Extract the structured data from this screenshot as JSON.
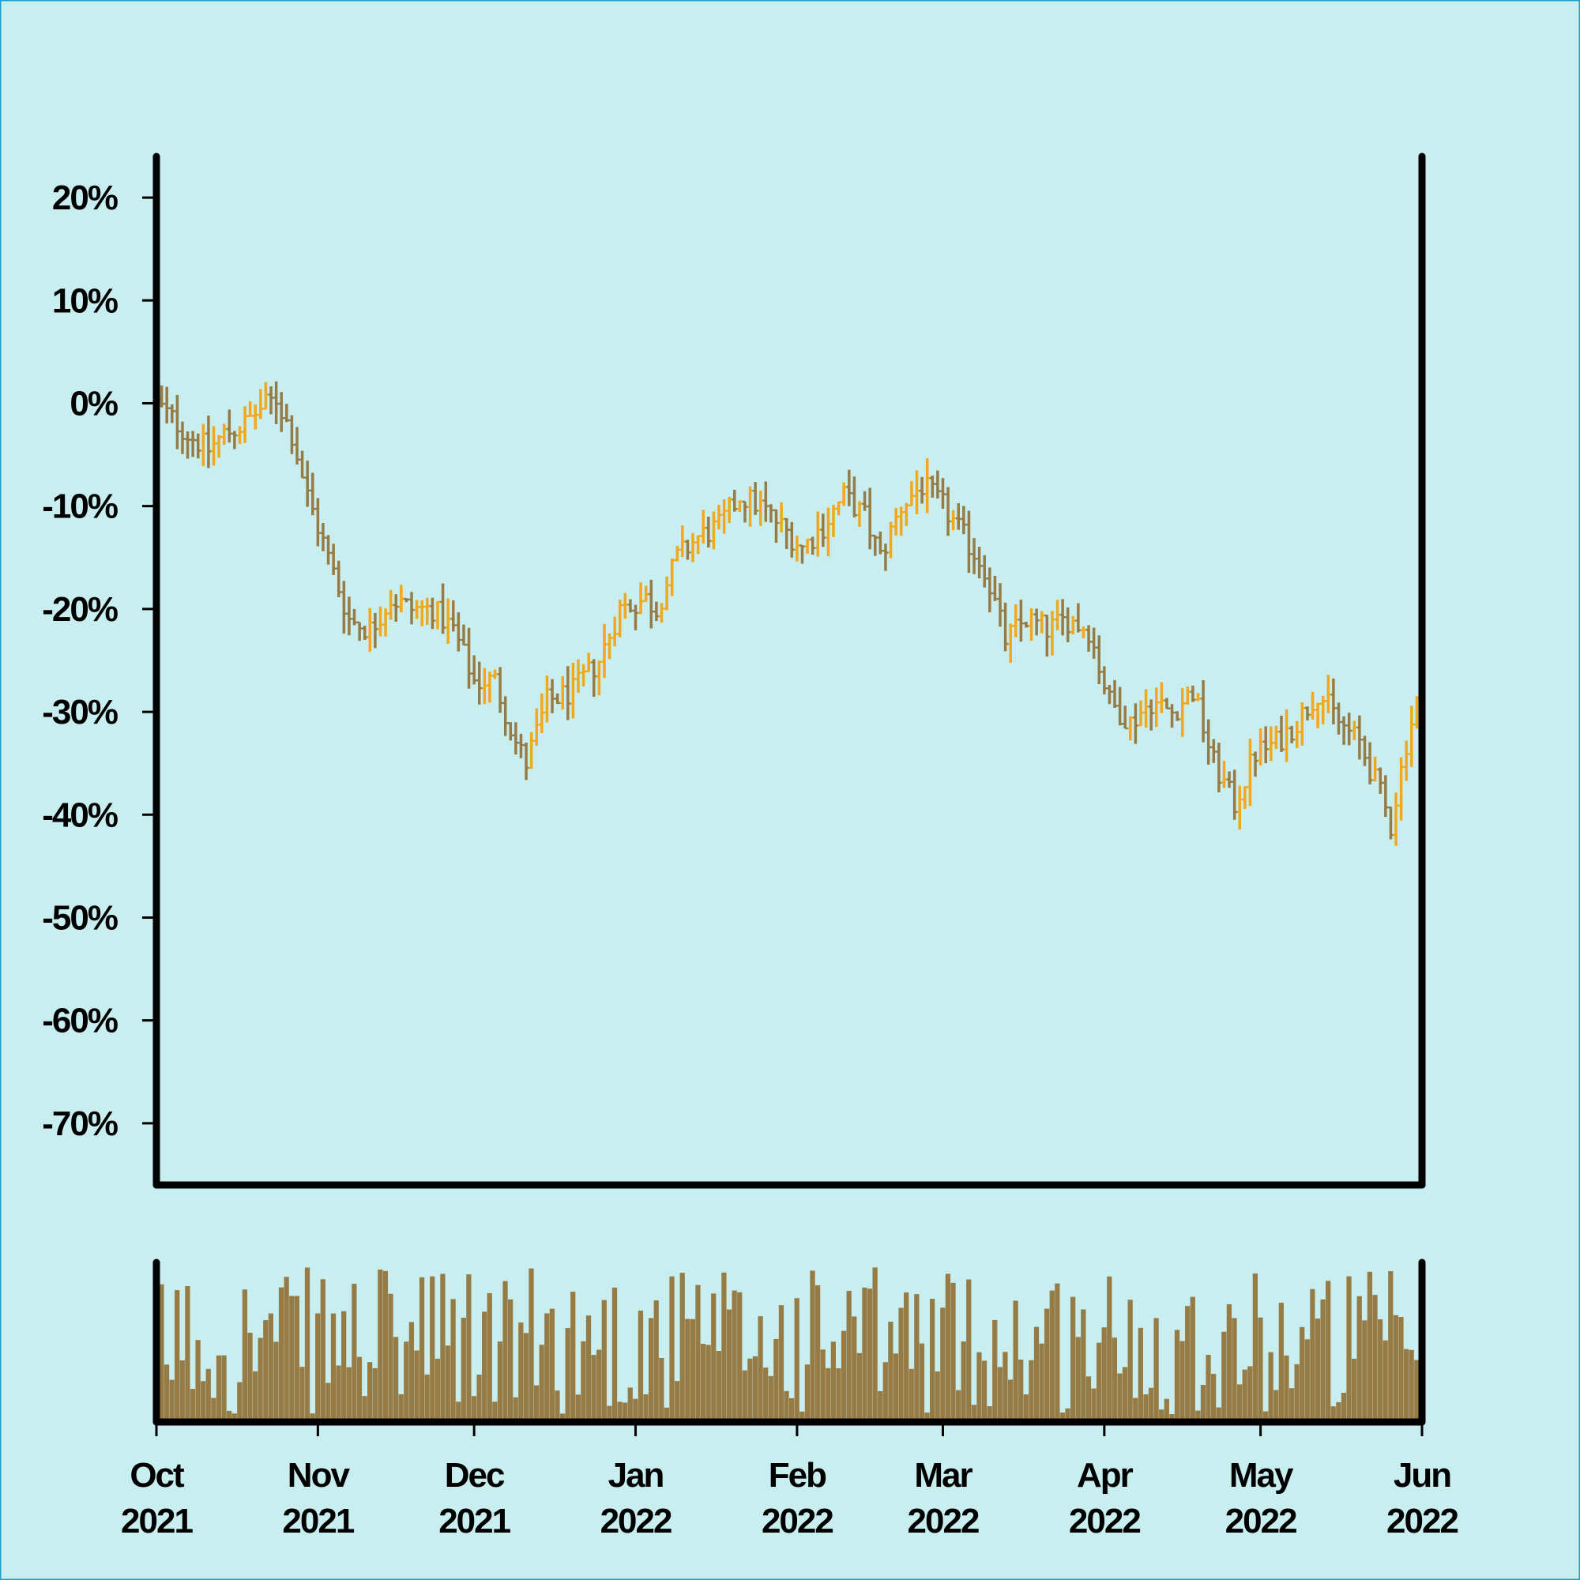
{
  "chart_data": {
    "type": "ohlc",
    "background": "#c9eef0",
    "colors": {
      "up": "#f2a81d",
      "down": "#967b45",
      "volume": "#967b45",
      "axis": "#000000"
    },
    "title": "",
    "xlabel": "",
    "ylabel": "",
    "grid": false,
    "legend": "none",
    "x_range": [
      "2021-10-01",
      "2022-06-01"
    ],
    "y_range": [
      -0.76,
      0.24
    ],
    "y_ticks": [
      {
        "value": 0.2,
        "label": "20%"
      },
      {
        "value": 0.1,
        "label": "10%"
      },
      {
        "value": 0.0,
        "label": "0%"
      },
      {
        "value": -0.1,
        "label": "-10%"
      },
      {
        "value": -0.2,
        "label": "-20%"
      },
      {
        "value": -0.3,
        "label": "-30%"
      },
      {
        "value": -0.4,
        "label": "-40%"
      },
      {
        "value": -0.5,
        "label": "-50%"
      },
      {
        "value": -0.6,
        "label": "-60%"
      },
      {
        "value": -0.7,
        "label": "-70%"
      }
    ],
    "x_ticks": [
      {
        "date": "2021-10-01",
        "month": "Oct",
        "year": "2021"
      },
      {
        "date": "2021-11-01",
        "month": "Nov",
        "year": "2021"
      },
      {
        "date": "2021-12-01",
        "month": "Dec",
        "year": "2021"
      },
      {
        "date": "2022-01-01",
        "month": "Jan",
        "year": "2022"
      },
      {
        "date": "2022-02-01",
        "month": "Feb",
        "year": "2022"
      },
      {
        "date": "2022-03-01",
        "month": "Mar",
        "year": "2022"
      },
      {
        "date": "2022-04-01",
        "month": "Apr",
        "year": "2022"
      },
      {
        "date": "2022-05-01",
        "month": "May",
        "year": "2022"
      },
      {
        "date": "2022-06-01",
        "month": "Jun",
        "year": "2022"
      }
    ],
    "close_path": [
      [
        "2021-10-01",
        0.0
      ],
      [
        "2021-10-07",
        -0.03
      ],
      [
        "2021-10-11",
        -0.045
      ],
      [
        "2021-10-14",
        -0.03
      ],
      [
        "2021-10-18",
        -0.02
      ],
      [
        "2021-10-21",
        -0.005
      ],
      [
        "2021-10-24",
        0.005
      ],
      [
        "2021-10-27",
        -0.03
      ],
      [
        "2021-10-30",
        -0.09
      ],
      [
        "2021-11-03",
        -0.15
      ],
      [
        "2021-11-07",
        -0.21
      ],
      [
        "2021-11-11",
        -0.22
      ],
      [
        "2021-11-15",
        -0.19
      ],
      [
        "2021-11-19",
        -0.2
      ],
      [
        "2021-11-23",
        -0.2
      ],
      [
        "2021-11-27",
        -0.22
      ],
      [
        "2021-12-01",
        -0.27
      ],
      [
        "2021-12-05",
        -0.27
      ],
      [
        "2021-12-09",
        -0.33
      ],
      [
        "2021-12-11",
        -0.35
      ],
      [
        "2021-12-15",
        -0.29
      ],
      [
        "2021-12-20",
        -0.28
      ],
      [
        "2021-12-25",
        -0.25
      ],
      [
        "2021-12-29",
        -0.2
      ],
      [
        "2022-01-03",
        -0.19
      ],
      [
        "2022-01-05",
        -0.2
      ],
      [
        "2022-01-09",
        -0.15
      ],
      [
        "2022-01-13",
        -0.13
      ],
      [
        "2022-01-17",
        -0.12
      ],
      [
        "2022-01-21",
        -0.09
      ],
      [
        "2022-01-25",
        -0.1
      ],
      [
        "2022-01-29",
        -0.12
      ],
      [
        "2022-02-02",
        -0.14
      ],
      [
        "2022-02-06",
        -0.12
      ],
      [
        "2022-02-10",
        -0.09
      ],
      [
        "2022-02-14",
        -0.11
      ],
      [
        "2022-02-17",
        -0.15
      ],
      [
        "2022-02-21",
        -0.1
      ],
      [
        "2022-02-25",
        -0.08
      ],
      [
        "2022-03-01",
        -0.1
      ],
      [
        "2022-03-05",
        -0.13
      ],
      [
        "2022-03-09",
        -0.16
      ],
      [
        "2022-03-13",
        -0.23
      ],
      [
        "2022-03-17",
        -0.21
      ],
      [
        "2022-03-21",
        -0.22
      ],
      [
        "2022-03-25",
        -0.21
      ],
      [
        "2022-03-29",
        -0.22
      ],
      [
        "2022-04-02",
        -0.29
      ],
      [
        "2022-04-06",
        -0.31
      ],
      [
        "2022-04-10",
        -0.29
      ],
      [
        "2022-04-14",
        -0.3
      ],
      [
        "2022-04-18",
        -0.28
      ],
      [
        "2022-04-22",
        -0.35
      ],
      [
        "2022-04-26",
        -0.39
      ],
      [
        "2022-04-30",
        -0.34
      ],
      [
        "2022-05-04",
        -0.33
      ],
      [
        "2022-05-08",
        -0.31
      ],
      [
        "2022-05-12",
        -0.28
      ],
      [
        "2022-05-16",
        -0.31
      ],
      [
        "2022-05-20",
        -0.33
      ],
      [
        "2022-05-24",
        -0.38
      ],
      [
        "2022-05-26",
        -0.41
      ],
      [
        "2022-05-29",
        -0.33
      ],
      [
        "2022-06-01",
        -0.27
      ]
    ],
    "volume_note": "relative daily volume bars, values 0-1"
  }
}
